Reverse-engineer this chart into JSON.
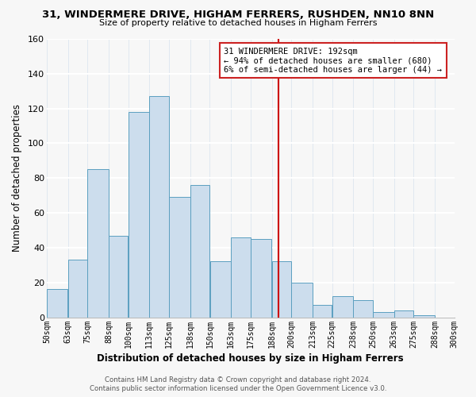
{
  "title": "31, WINDERMERE DRIVE, HIGHAM FERRERS, RUSHDEN, NN10 8NN",
  "subtitle": "Size of property relative to detached houses in Higham Ferrers",
  "xlabel": "Distribution of detached houses by size in Higham Ferrers",
  "ylabel": "Number of detached properties",
  "footer_line1": "Contains HM Land Registry data © Crown copyright and database right 2024.",
  "footer_line2": "Contains public sector information licensed under the Open Government Licence v3.0.",
  "bar_edges": [
    50,
    63,
    75,
    88,
    100,
    113,
    125,
    138,
    150,
    163,
    175,
    188,
    200,
    213,
    225,
    238,
    250,
    263,
    275,
    288,
    300
  ],
  "bar_heights": [
    16,
    33,
    85,
    47,
    118,
    127,
    69,
    76,
    32,
    46,
    45,
    32,
    20,
    7,
    12,
    10,
    3,
    4,
    1,
    0
  ],
  "bar_color": "#ccdded",
  "bar_edgecolor": "#5b9fc0",
  "vline_x": 192,
  "vline_color": "#cc0000",
  "annotation_title": "31 WINDERMERE DRIVE: 192sqm",
  "annotation_line1": "← 94% of detached houses are smaller (680)",
  "annotation_line2": "6% of semi-detached houses are larger (44) →",
  "ylim": [
    0,
    160
  ],
  "yticks": [
    0,
    20,
    40,
    60,
    80,
    100,
    120,
    140,
    160
  ],
  "tick_labels": [
    "50sqm",
    "63sqm",
    "75sqm",
    "88sqm",
    "100sqm",
    "113sqm",
    "125sqm",
    "138sqm",
    "150sqm",
    "163sqm",
    "175sqm",
    "188sqm",
    "200sqm",
    "213sqm",
    "225sqm",
    "238sqm",
    "250sqm",
    "263sqm",
    "275sqm",
    "288sqm",
    "300sqm"
  ],
  "background_color": "#f7f7f7",
  "grid_color": "#e0e8f0"
}
